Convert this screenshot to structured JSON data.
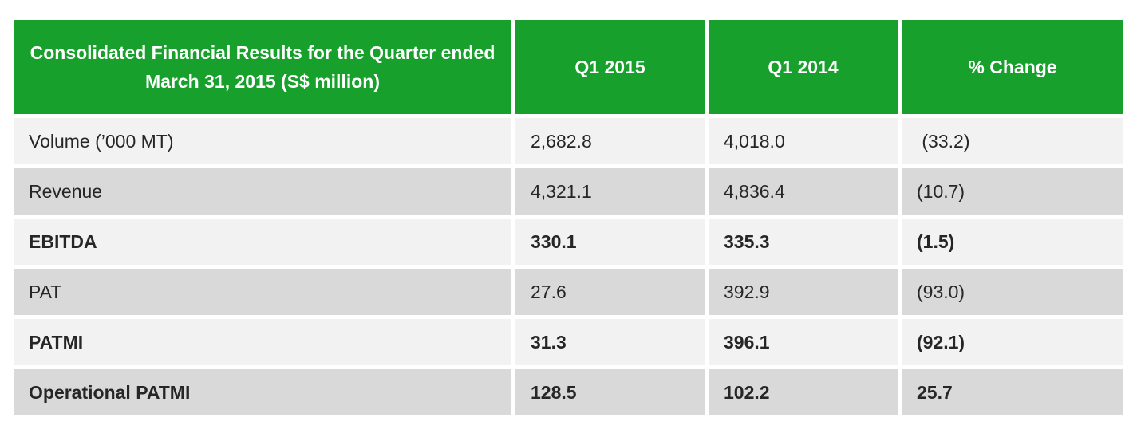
{
  "table": {
    "title": "Consolidated Financial Results for the Quarter ended March 31, 2015 (S$ million)",
    "columns": [
      "Q1 2015",
      "Q1 2014",
      "% Change"
    ],
    "rows": [
      {
        "label": "Volume (’000 MT)",
        "q1_2015": "2,682.8",
        "q1_2014": "4,018.0",
        "pct_change": " (33.2)",
        "emphasis": false
      },
      {
        "label": "Revenue",
        "q1_2015": "4,321.1",
        "q1_2014": "4,836.4",
        "pct_change": "(10.7)",
        "emphasis": false
      },
      {
        "label": "EBITDA",
        "q1_2015": "330.1",
        "q1_2014": "335.3",
        "pct_change": "(1.5)",
        "emphasis": true
      },
      {
        "label": "PAT",
        "q1_2015": "27.6",
        "q1_2014": "392.9",
        "pct_change": "(93.0)",
        "emphasis": false
      },
      {
        "label": "PATMI",
        "q1_2015": "31.3",
        "q1_2014": "396.1",
        "pct_change": "(92.1)",
        "emphasis": true
      },
      {
        "label": "Operational PATMI",
        "q1_2015": "128.5",
        "q1_2014": "102.2",
        "pct_change": "25.7",
        "emphasis": true
      }
    ],
    "colors": {
      "header_bg": "#18A02C",
      "header_text": "#FFFFFF",
      "row_light_bg": "#F2F2F2",
      "row_dark_bg": "#D9D9D9",
      "body_text": "#262626",
      "separator": "#FFFFFF"
    }
  }
}
